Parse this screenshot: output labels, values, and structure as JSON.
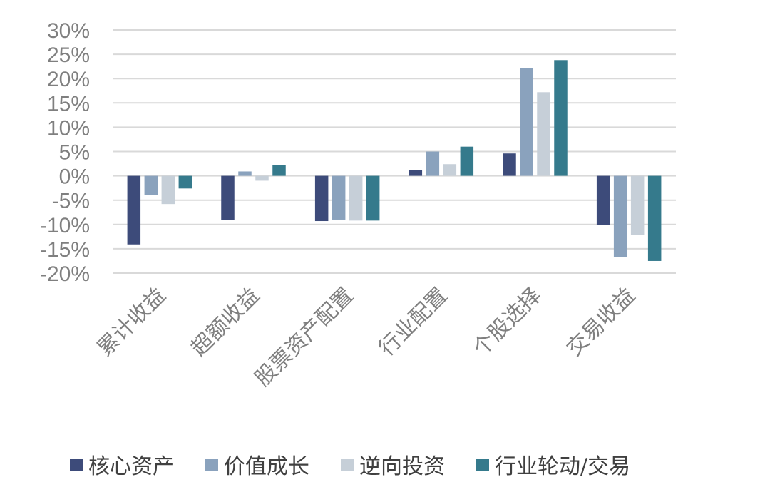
{
  "chart_data": {
    "type": "bar",
    "title": "",
    "xlabel": "",
    "ylabel": "",
    "categories": [
      "累计收益",
      "超额收益",
      "股票资产配置",
      "行业配置",
      "个股选择",
      "交易收益"
    ],
    "ylim": [
      -20,
      30
    ],
    "ytick_step": 5,
    "ytick_format": "percent",
    "grid": true,
    "legend_position": "bottom",
    "series": [
      {
        "name": "核心资产",
        "color": "#3d4b7a",
        "values": [
          -14.1,
          -9.1,
          -9.3,
          1.2,
          4.6,
          -10.1
        ]
      },
      {
        "name": "价值成长",
        "color": "#8aa2bd",
        "values": [
          -3.9,
          0.9,
          -9.0,
          5.0,
          22.2,
          -16.7
        ]
      },
      {
        "name": "逆向投资",
        "color": "#c6cfd8",
        "values": [
          -5.8,
          -1.0,
          -9.2,
          2.4,
          17.2,
          -12.1
        ]
      },
      {
        "name": "行业轮动/交易",
        "color": "#357a8c",
        "values": [
          -2.6,
          2.2,
          -9.2,
          6.0,
          23.8,
          -17.5
        ]
      }
    ]
  }
}
